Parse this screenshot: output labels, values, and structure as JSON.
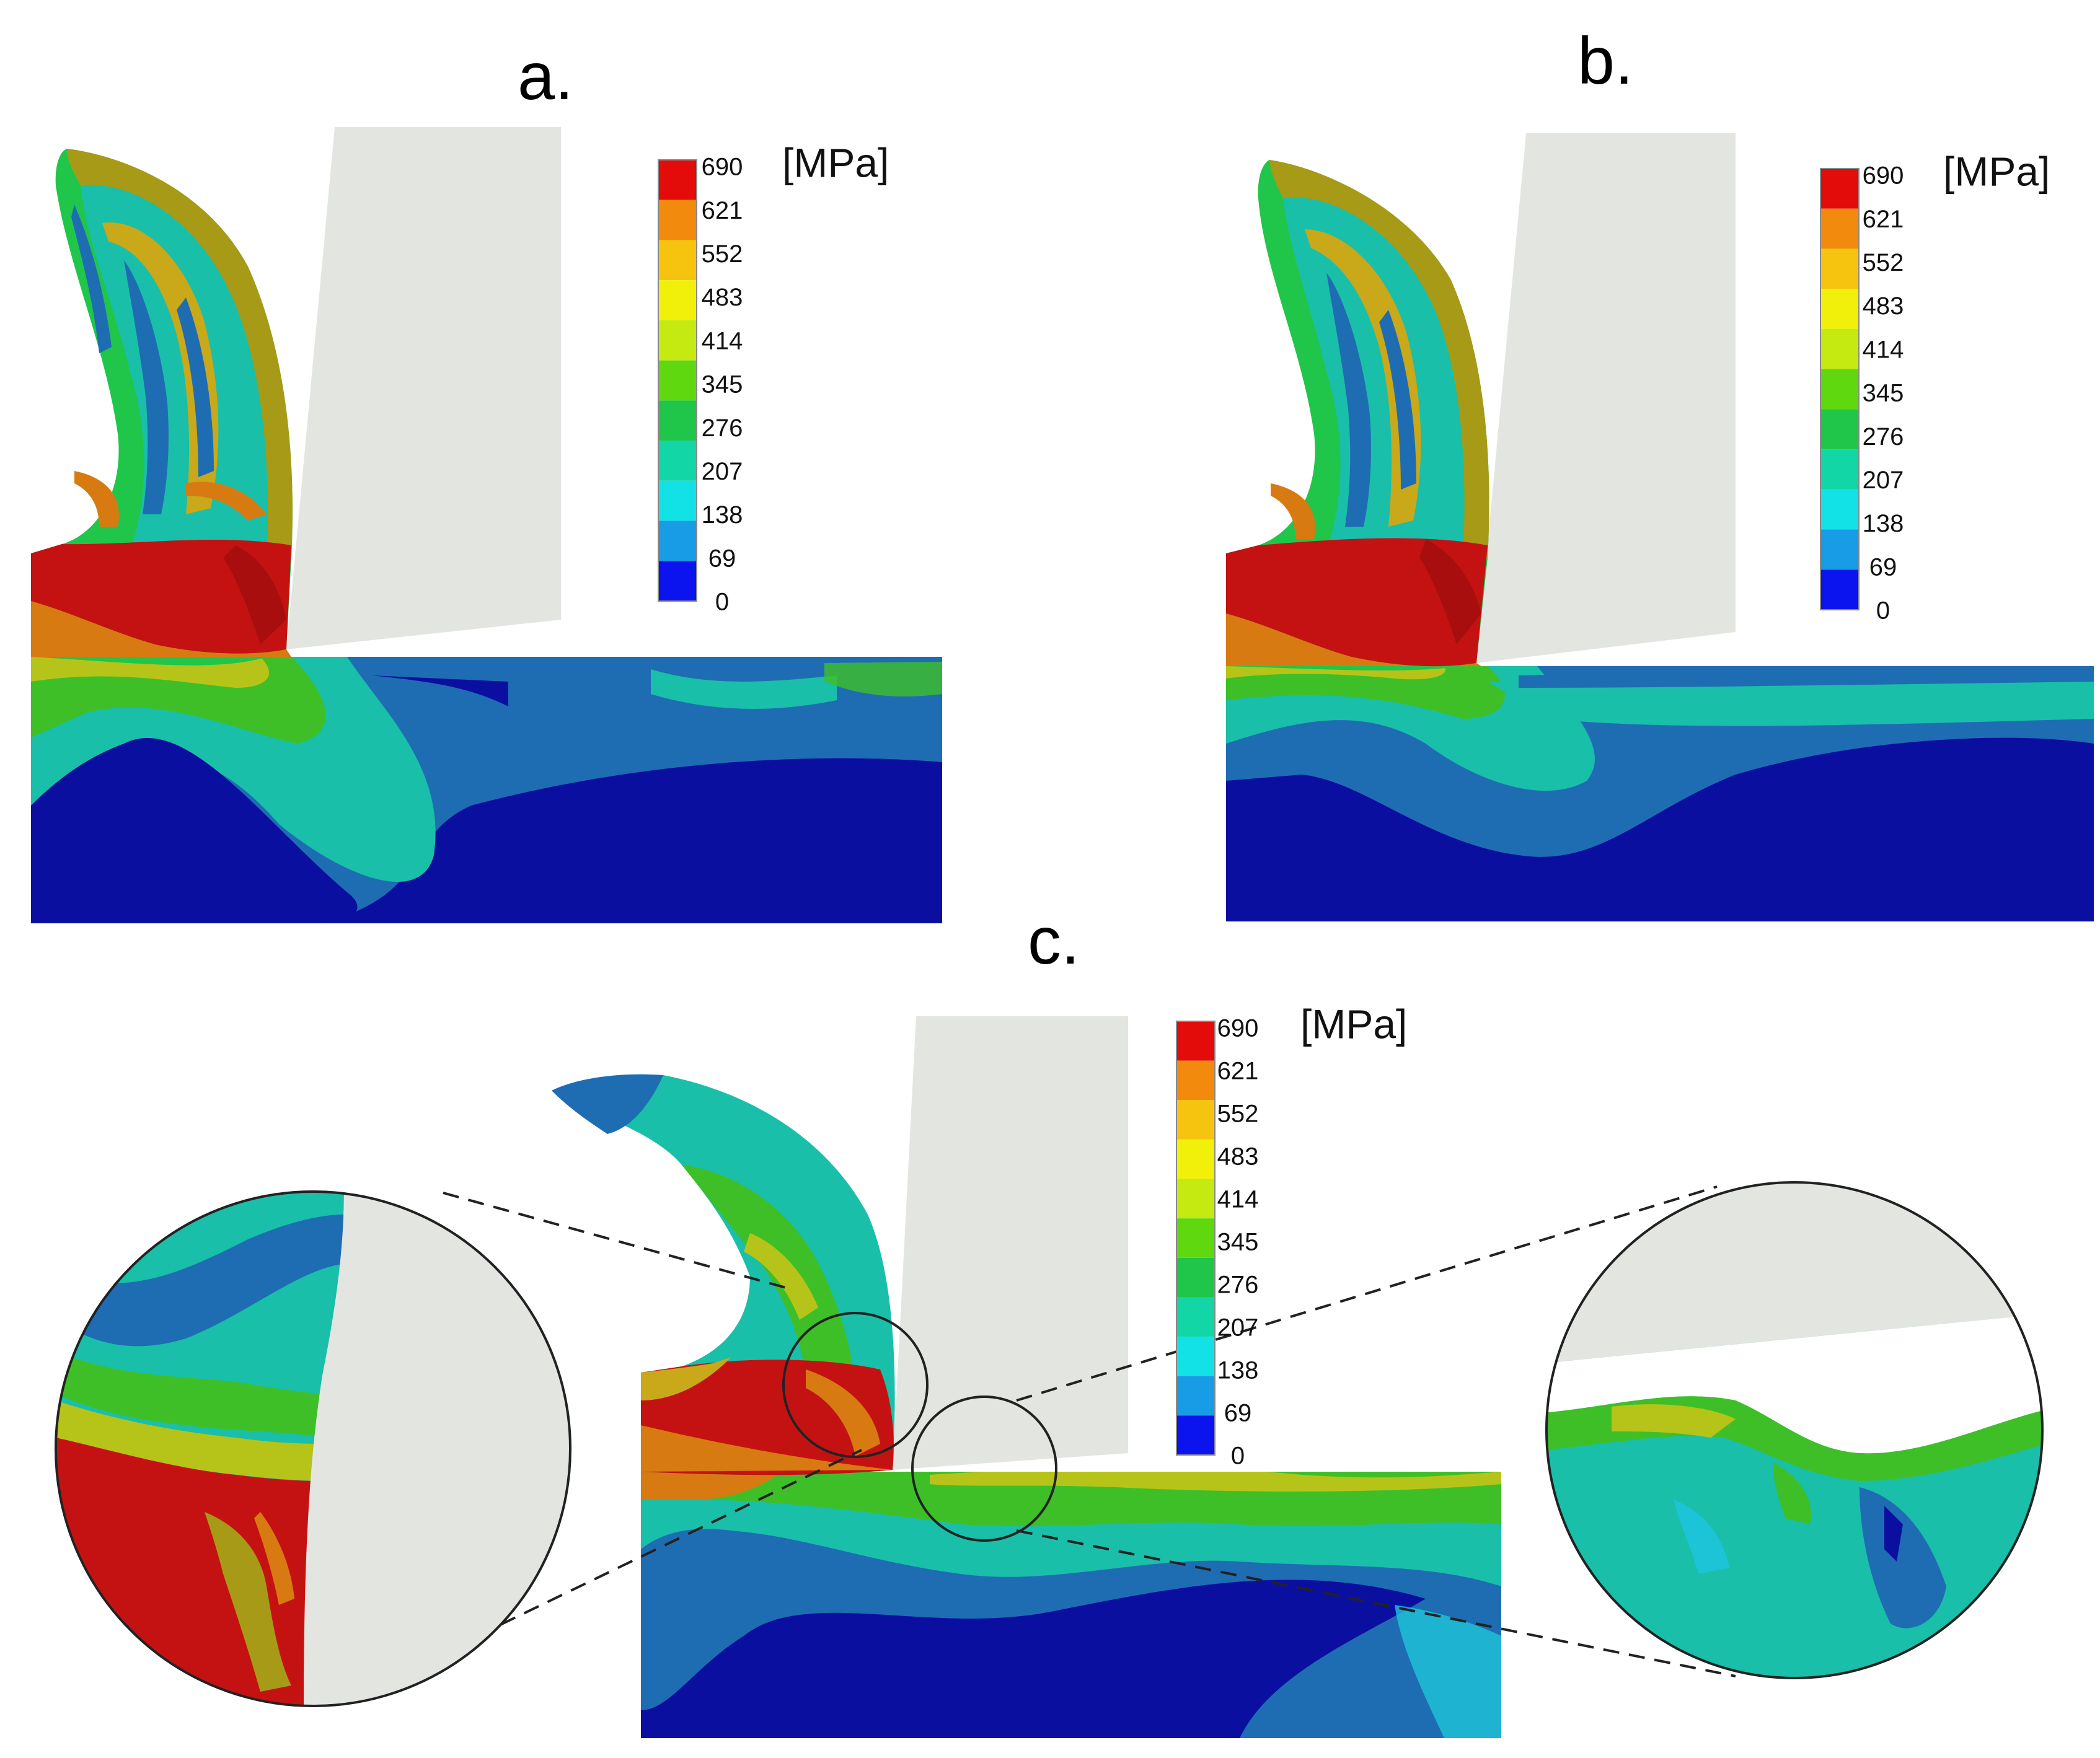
{
  "panels": [
    {
      "label": "a."
    },
    {
      "label": "b."
    },
    {
      "label": "c."
    }
  ],
  "legend": {
    "unit": "[MPa]",
    "ticks": [
      "690",
      "621",
      "552",
      "483",
      "414",
      "345",
      "276",
      "207",
      "138",
      "69",
      "0"
    ],
    "colors": [
      "#e40b0b",
      "#f28a0d",
      "#f6c40e",
      "#f0f00a",
      "#c4ea12",
      "#5fd80f",
      "#1fc64a",
      "#12d6a6",
      "#12e2e6",
      "#189ce6",
      "#0b14ee"
    ]
  },
  "palette": {
    "red": "#c41212",
    "dark_red": "#a80e0e",
    "orange": "#d87a12",
    "olive": "#a79a16",
    "yellow_green": "#b6c419",
    "green": "#3ebf27",
    "teal": "#19bfa9",
    "cyan": "#1dc4d8",
    "light_blue": "#2a8fcf",
    "steel_blue": "#1e6db3",
    "navy": "#0b0fa0",
    "tool_gray": "#e3e6e0"
  }
}
